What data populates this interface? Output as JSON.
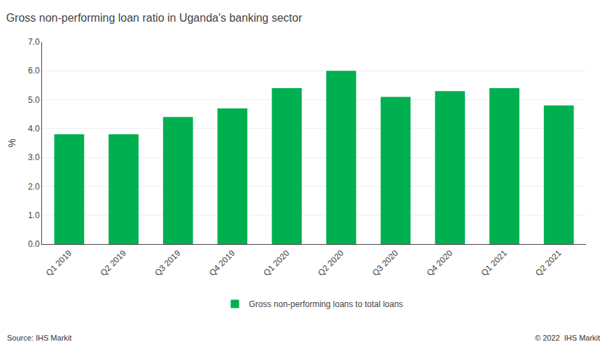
{
  "chart_data": {
    "type": "bar",
    "title": "Gross non-performing loan ratio in Uganda's banking sector",
    "categories": [
      "Q1 2019",
      "Q2 2019",
      "Q3 2019",
      "Q4 2019",
      "Q1 2020",
      "Q2 2020",
      "Q3 2020",
      "Q4 2020",
      "Q1 2021",
      "Q2 2021"
    ],
    "series": [
      {
        "name": "Gross non-performing loans to total loans",
        "color": "#00b050",
        "values": [
          3.8,
          3.8,
          4.4,
          4.7,
          5.4,
          6.0,
          5.1,
          5.3,
          5.4,
          4.8
        ]
      }
    ],
    "ylabel": "%",
    "ylim": [
      0.0,
      7.0
    ],
    "yticks": [
      {
        "value": 0.0,
        "label": "0.0"
      },
      {
        "value": 1.0,
        "label": "1.0"
      },
      {
        "value": 2.0,
        "label": "2.0"
      },
      {
        "value": 3.0,
        "label": "3.0"
      },
      {
        "value": 4.0,
        "label": "4.0"
      },
      {
        "value": 5.0,
        "label": "5.0"
      },
      {
        "value": 6.0,
        "label": "6.0"
      },
      {
        "value": 7.0,
        "label": "7.0"
      }
    ],
    "grid": true,
    "legend": "bottom",
    "annotations": [
      "Source: IHS Markit",
      "© 2022  IHS Markit"
    ]
  }
}
